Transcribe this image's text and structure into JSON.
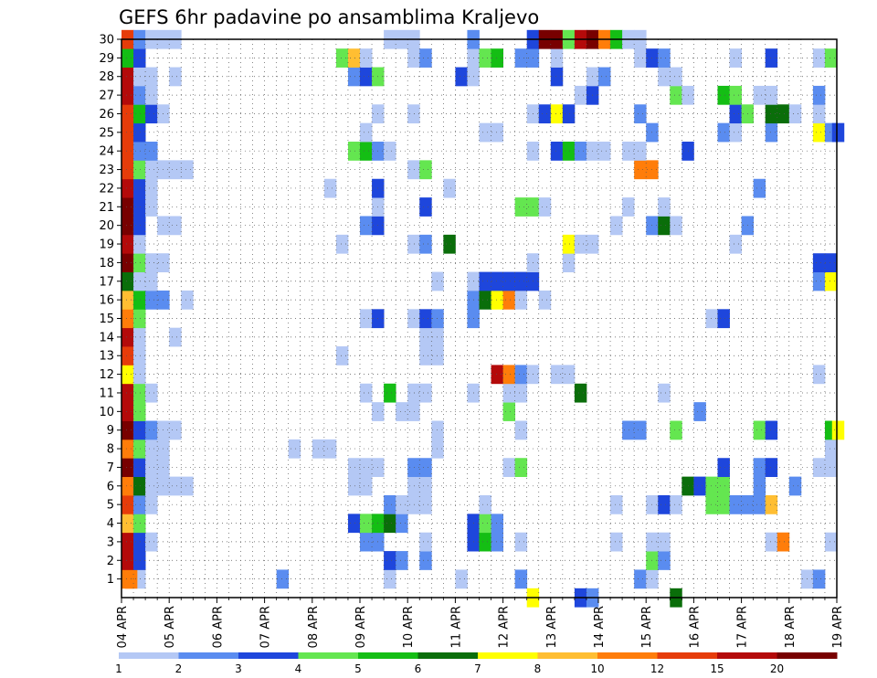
{
  "chart_data": {
    "type": "heatmap",
    "title": "GEFS 6hr padavine po ansamblima Kraljevo",
    "x_labels": [
      "04 APR",
      "05 APR",
      "06 APR",
      "07 APR",
      "08 APR",
      "09 APR",
      "10 APR",
      "11 APR",
      "12 APR",
      "13 APR",
      "14 APR",
      "15 APR",
      "16 APR",
      "17 APR",
      "18 APR",
      "19 APR"
    ],
    "y_labels": [
      "1",
      "2",
      "3",
      "4",
      "5",
      "6",
      "7",
      "8",
      "9",
      "10",
      "11",
      "12",
      "13",
      "14",
      "15",
      "16",
      "17",
      "18",
      "19",
      "20",
      "21",
      "22",
      "23",
      "24",
      "25",
      "26",
      "27",
      "28",
      "29",
      "30"
    ],
    "x_range_steps": [
      0,
      60
    ],
    "y_range": [
      0,
      30
    ],
    "grid": true,
    "legend_position": "bottom",
    "legend": {
      "ticks": [
        "1",
        "2",
        "3",
        "4",
        "5",
        "6",
        "7",
        "8",
        "10",
        "12",
        "15",
        "20"
      ],
      "colors": [
        "#b4c8f5",
        "#5a8cf0",
        "#1e46dc",
        "#64e650",
        "#14be14",
        "#0a6e0a",
        "#ffff00",
        "#ffbe32",
        "#ff7d0a",
        "#e63c0a",
        "#b40a0a",
        "#780000"
      ]
    },
    "cells": [
      [
        1,
        1,
        9
      ],
      [
        1,
        2,
        1
      ],
      [
        1,
        14,
        2
      ],
      [
        1,
        23,
        1
      ],
      [
        1,
        29,
        1
      ],
      [
        1,
        34,
        2
      ],
      [
        1,
        44,
        2
      ],
      [
        1,
        45,
        1
      ],
      [
        1,
        58,
        1
      ],
      [
        1,
        59,
        2
      ],
      [
        1,
        1.3,
        9
      ],
      [
        2,
        1,
        11
      ],
      [
        2,
        2,
        3
      ],
      [
        2,
        23,
        3
      ],
      [
        2,
        24,
        2
      ],
      [
        2,
        26,
        2
      ],
      [
        2,
        45,
        4
      ],
      [
        2,
        46,
        2
      ],
      [
        3,
        1,
        11
      ],
      [
        3,
        2,
        3
      ],
      [
        3,
        3,
        1
      ],
      [
        3,
        21,
        2
      ],
      [
        3,
        22,
        2
      ],
      [
        3,
        26,
        1
      ],
      [
        3,
        30,
        3
      ],
      [
        3,
        31,
        5
      ],
      [
        3,
        32,
        2
      ],
      [
        3,
        34,
        1
      ],
      [
        3,
        42,
        1
      ],
      [
        3,
        45,
        1
      ],
      [
        3,
        46,
        1
      ],
      [
        3,
        55,
        1
      ],
      [
        3,
        56,
        9
      ],
      [
        3,
        60,
        1
      ],
      [
        4,
        1,
        8
      ],
      [
        4,
        2,
        4
      ],
      [
        4,
        20,
        3
      ],
      [
        4,
        21,
        4
      ],
      [
        4,
        22,
        5
      ],
      [
        4,
        23,
        6
      ],
      [
        4,
        24,
        2
      ],
      [
        4,
        30,
        3
      ],
      [
        4,
        31,
        4
      ],
      [
        4,
        32,
        2
      ],
      [
        5,
        1,
        10
      ],
      [
        5,
        2,
        2
      ],
      [
        5,
        3,
        1
      ],
      [
        5,
        23,
        2
      ],
      [
        5,
        24,
        1
      ],
      [
        5,
        25,
        1
      ],
      [
        5,
        26,
        1
      ],
      [
        5,
        31,
        1
      ],
      [
        5,
        42,
        1
      ],
      [
        5,
        45,
        1
      ],
      [
        5,
        46,
        3
      ],
      [
        5,
        47,
        1
      ],
      [
        5,
        50,
        4
      ],
      [
        5,
        51,
        4
      ],
      [
        5,
        52,
        2
      ],
      [
        5,
        53,
        2
      ],
      [
        5,
        54,
        2
      ],
      [
        5,
        55,
        8
      ],
      [
        6,
        1,
        9
      ],
      [
        6,
        2,
        6
      ],
      [
        6,
        3,
        1
      ],
      [
        6,
        4,
        1
      ],
      [
        6,
        5,
        1
      ],
      [
        6,
        6,
        1
      ],
      [
        6,
        20,
        1
      ],
      [
        6,
        21,
        1
      ],
      [
        6,
        25,
        1
      ],
      [
        6,
        26,
        1
      ],
      [
        6,
        48,
        6
      ],
      [
        6,
        49,
        3
      ],
      [
        6,
        50,
        4
      ],
      [
        6,
        51,
        4
      ],
      [
        6,
        54,
        2
      ],
      [
        6,
        57,
        2
      ],
      [
        7,
        1,
        12
      ],
      [
        7,
        2,
        3
      ],
      [
        7,
        3,
        1
      ],
      [
        7,
        4,
        1
      ],
      [
        7,
        20,
        1
      ],
      [
        7,
        21,
        1
      ],
      [
        7,
        22,
        1
      ],
      [
        7,
        25,
        2
      ],
      [
        7,
        26,
        2
      ],
      [
        7,
        33,
        1
      ],
      [
        7,
        34,
        4
      ],
      [
        7,
        51,
        3
      ],
      [
        7,
        54,
        2
      ],
      [
        7,
        55,
        3
      ],
      [
        7,
        59,
        1
      ],
      [
        7,
        60,
        1
      ],
      [
        8,
        1,
        9
      ],
      [
        8,
        2,
        4
      ],
      [
        8,
        3,
        1
      ],
      [
        8,
        4,
        1
      ],
      [
        8,
        15,
        1
      ],
      [
        8,
        17,
        1
      ],
      [
        8,
        18,
        1
      ],
      [
        8,
        27,
        1
      ],
      [
        8,
        60,
        1
      ],
      [
        9,
        1,
        12
      ],
      [
        9,
        2,
        3
      ],
      [
        9,
        3,
        2
      ],
      [
        9,
        4,
        1
      ],
      [
        9,
        5,
        1
      ],
      [
        9,
        27,
        1
      ],
      [
        9,
        34,
        1
      ],
      [
        9,
        43,
        2
      ],
      [
        9,
        44,
        2
      ],
      [
        9,
        47,
        4
      ],
      [
        9,
        54,
        4
      ],
      [
        9,
        55,
        3
      ],
      [
        9,
        60,
        5
      ],
      [
        9,
        60.6,
        7
      ],
      [
        10,
        1,
        11
      ],
      [
        10,
        2,
        4
      ],
      [
        10,
        22,
        1
      ],
      [
        10,
        24,
        1
      ],
      [
        10,
        25,
        1
      ],
      [
        10,
        33,
        4
      ],
      [
        10,
        49,
        2
      ],
      [
        11,
        1,
        11
      ],
      [
        11,
        2,
        4
      ],
      [
        11,
        3,
        1
      ],
      [
        11,
        21,
        1
      ],
      [
        11,
        23,
        5
      ],
      [
        11,
        25,
        1
      ],
      [
        11,
        26,
        1
      ],
      [
        11,
        30,
        1
      ],
      [
        11,
        33,
        1
      ],
      [
        11,
        34,
        1
      ],
      [
        11,
        39,
        6
      ],
      [
        11,
        46,
        1
      ],
      [
        12,
        1,
        7
      ],
      [
        12,
        2,
        1
      ],
      [
        12,
        32,
        11
      ],
      [
        12,
        33,
        9
      ],
      [
        12,
        34,
        2
      ],
      [
        12,
        35,
        1
      ],
      [
        12,
        37,
        1
      ],
      [
        12,
        38,
        1
      ],
      [
        12,
        59,
        1
      ],
      [
        13,
        1,
        10
      ],
      [
        13,
        2,
        1
      ],
      [
        13,
        19,
        1
      ],
      [
        13,
        26,
        1
      ],
      [
        13,
        27,
        1
      ],
      [
        14,
        1,
        11
      ],
      [
        14,
        2,
        1
      ],
      [
        14,
        5,
        1
      ],
      [
        14,
        26,
        1
      ],
      [
        14,
        27,
        1
      ],
      [
        15,
        1,
        9
      ],
      [
        15,
        2,
        4
      ],
      [
        15,
        21,
        1
      ],
      [
        15,
        22,
        3
      ],
      [
        15,
        25,
        1
      ],
      [
        15,
        26,
        3
      ],
      [
        15,
        27,
        2
      ],
      [
        15,
        30,
        2
      ],
      [
        15,
        50,
        1
      ],
      [
        15,
        51,
        3
      ],
      [
        16,
        1,
        8
      ],
      [
        16,
        2,
        5
      ],
      [
        16,
        3,
        2
      ],
      [
        16,
        4,
        2
      ],
      [
        16,
        6,
        1
      ],
      [
        16,
        30,
        2
      ],
      [
        16,
        31,
        6
      ],
      [
        16,
        32,
        7
      ],
      [
        16,
        33,
        9
      ],
      [
        16,
        34,
        1
      ],
      [
        16,
        36,
        1
      ],
      [
        17,
        1,
        6
      ],
      [
        17,
        2,
        1
      ],
      [
        17,
        3,
        1
      ],
      [
        17,
        27,
        1
      ],
      [
        17,
        30,
        1
      ],
      [
        17,
        31,
        3
      ],
      [
        17,
        32,
        3
      ],
      [
        17,
        33,
        3
      ],
      [
        17,
        34,
        3
      ],
      [
        17,
        35,
        3
      ],
      [
        17,
        59,
        2
      ],
      [
        17,
        60,
        7
      ],
      [
        18,
        1,
        12
      ],
      [
        18,
        2,
        4
      ],
      [
        18,
        3,
        1
      ],
      [
        18,
        4,
        1
      ],
      [
        18,
        35,
        1
      ],
      [
        18,
        38,
        1
      ],
      [
        18,
        59,
        3
      ],
      [
        18,
        60,
        3
      ],
      [
        19,
        1,
        11
      ],
      [
        19,
        2,
        1
      ],
      [
        19,
        19,
        1
      ],
      [
        19,
        25,
        1
      ],
      [
        19,
        26,
        2
      ],
      [
        19,
        28,
        6
      ],
      [
        19,
        38,
        7
      ],
      [
        19,
        39,
        1
      ],
      [
        19,
        40,
        1
      ],
      [
        19,
        52,
        1
      ],
      [
        20,
        1,
        12
      ],
      [
        20,
        2,
        3
      ],
      [
        20,
        4,
        1
      ],
      [
        20,
        5,
        1
      ],
      [
        20,
        21,
        2
      ],
      [
        20,
        22,
        3
      ],
      [
        20,
        42,
        1
      ],
      [
        20,
        45,
        2
      ],
      [
        20,
        46,
        6
      ],
      [
        20,
        47,
        1
      ],
      [
        20,
        53,
        2
      ],
      [
        21,
        1,
        12
      ],
      [
        21,
        2,
        3
      ],
      [
        21,
        3,
        1
      ],
      [
        21,
        22,
        1
      ],
      [
        21,
        26,
        3
      ],
      [
        21,
        34,
        4
      ],
      [
        21,
        35,
        4
      ],
      [
        21,
        36,
        1
      ],
      [
        21,
        43,
        1
      ],
      [
        21,
        46,
        1
      ],
      [
        22,
        1,
        11
      ],
      [
        22,
        2,
        3
      ],
      [
        22,
        3,
        1
      ],
      [
        22,
        18,
        1
      ],
      [
        22,
        22,
        3
      ],
      [
        22,
        28,
        1
      ],
      [
        22,
        54,
        2
      ],
      [
        23,
        1,
        10
      ],
      [
        23,
        2,
        4
      ],
      [
        23,
        3,
        1
      ],
      [
        23,
        4,
        1
      ],
      [
        23,
        5,
        1
      ],
      [
        23,
        6,
        1
      ],
      [
        23,
        25,
        1
      ],
      [
        23,
        26,
        4
      ],
      [
        23,
        44,
        9
      ],
      [
        23,
        45,
        9
      ],
      [
        24,
        1,
        10
      ],
      [
        24,
        2,
        2
      ],
      [
        24,
        3,
        2
      ],
      [
        24,
        20,
        4
      ],
      [
        24,
        21,
        5
      ],
      [
        24,
        22,
        2
      ],
      [
        24,
        23,
        1
      ],
      [
        24,
        35,
        1
      ],
      [
        24,
        37,
        3
      ],
      [
        24,
        38,
        5
      ],
      [
        24,
        39,
        2
      ],
      [
        24,
        40,
        1
      ],
      [
        24,
        41,
        1
      ],
      [
        24,
        43,
        1
      ],
      [
        24,
        44,
        1
      ],
      [
        24,
        48,
        3
      ],
      [
        25,
        1,
        10
      ],
      [
        25,
        2,
        3
      ],
      [
        25,
        21,
        1
      ],
      [
        25,
        31,
        1
      ],
      [
        25,
        32,
        1
      ],
      [
        25,
        45,
        2
      ],
      [
        25,
        51,
        2
      ],
      [
        25,
        52,
        1
      ],
      [
        25,
        55,
        2
      ],
      [
        25,
        59,
        7
      ],
      [
        25,
        60,
        2
      ],
      [
        25,
        60.6,
        3
      ],
      [
        26,
        1,
        10
      ],
      [
        26,
        2,
        5
      ],
      [
        26,
        3,
        3
      ],
      [
        26,
        4,
        1
      ],
      [
        26,
        22,
        1
      ],
      [
        26,
        25,
        1
      ],
      [
        26,
        35,
        1
      ],
      [
        26,
        36,
        3
      ],
      [
        26,
        37,
        7
      ],
      [
        26,
        38,
        3
      ],
      [
        26,
        44,
        2
      ],
      [
        26,
        52,
        3
      ],
      [
        26,
        53,
        4
      ],
      [
        26,
        55,
        6
      ],
      [
        26,
        56,
        6
      ],
      [
        26,
        57,
        1
      ],
      [
        26,
        59,
        1
      ],
      [
        27,
        1,
        11
      ],
      [
        27,
        2,
        2
      ],
      [
        27,
        3,
        1
      ],
      [
        27,
        39,
        1
      ],
      [
        27,
        40,
        3
      ],
      [
        27,
        47,
        4
      ],
      [
        27,
        48,
        1
      ],
      [
        27,
        51,
        5
      ],
      [
        27,
        52,
        4
      ],
      [
        27,
        54,
        1
      ],
      [
        27,
        55,
        1
      ],
      [
        27,
        59,
        2
      ],
      [
        28,
        1,
        11
      ],
      [
        28,
        2,
        1
      ],
      [
        28,
        3,
        1
      ],
      [
        28,
        5,
        1
      ],
      [
        28,
        20,
        2
      ],
      [
        28,
        21,
        3
      ],
      [
        28,
        22,
        4
      ],
      [
        28,
        29,
        3
      ],
      [
        28,
        30,
        1
      ],
      [
        28,
        37,
        3
      ],
      [
        28,
        40,
        1
      ],
      [
        28,
        41,
        2
      ],
      [
        28,
        46,
        1
      ],
      [
        28,
        47,
        1
      ],
      [
        29,
        1,
        5
      ],
      [
        29,
        2,
        3
      ],
      [
        29,
        19,
        4
      ],
      [
        29,
        20,
        8
      ],
      [
        29,
        21,
        1
      ],
      [
        29,
        25,
        1
      ],
      [
        29,
        26,
        2
      ],
      [
        29,
        30,
        1
      ],
      [
        29,
        31,
        4
      ],
      [
        29,
        32,
        5
      ],
      [
        29,
        34,
        2
      ],
      [
        29,
        35,
        2
      ],
      [
        29,
        37,
        1
      ],
      [
        29,
        44,
        1
      ],
      [
        29,
        45,
        3
      ],
      [
        29,
        46,
        2
      ],
      [
        29,
        52,
        1
      ],
      [
        29,
        55,
        3
      ],
      [
        29,
        59,
        1
      ],
      [
        29,
        60,
        4
      ],
      [
        30,
        1,
        10
      ],
      [
        30,
        2,
        2
      ],
      [
        30,
        3,
        1
      ],
      [
        30,
        4,
        1
      ],
      [
        30,
        5,
        1
      ],
      [
        30,
        23,
        1
      ],
      [
        30,
        24,
        1
      ],
      [
        30,
        25,
        1
      ],
      [
        30,
        30,
        2
      ],
      [
        30,
        35,
        3
      ],
      [
        30,
        36,
        12
      ],
      [
        30,
        37,
        12
      ],
      [
        30,
        38,
        4
      ],
      [
        30,
        39,
        11
      ],
      [
        30,
        40,
        12
      ],
      [
        30,
        41,
        9
      ],
      [
        30,
        42,
        5
      ],
      [
        30,
        43,
        1
      ],
      [
        30,
        44,
        1
      ],
      [
        0,
        35,
        7
      ],
      [
        0,
        39,
        3
      ],
      [
        0,
        40,
        2
      ],
      [
        0,
        47,
        6
      ]
    ]
  }
}
